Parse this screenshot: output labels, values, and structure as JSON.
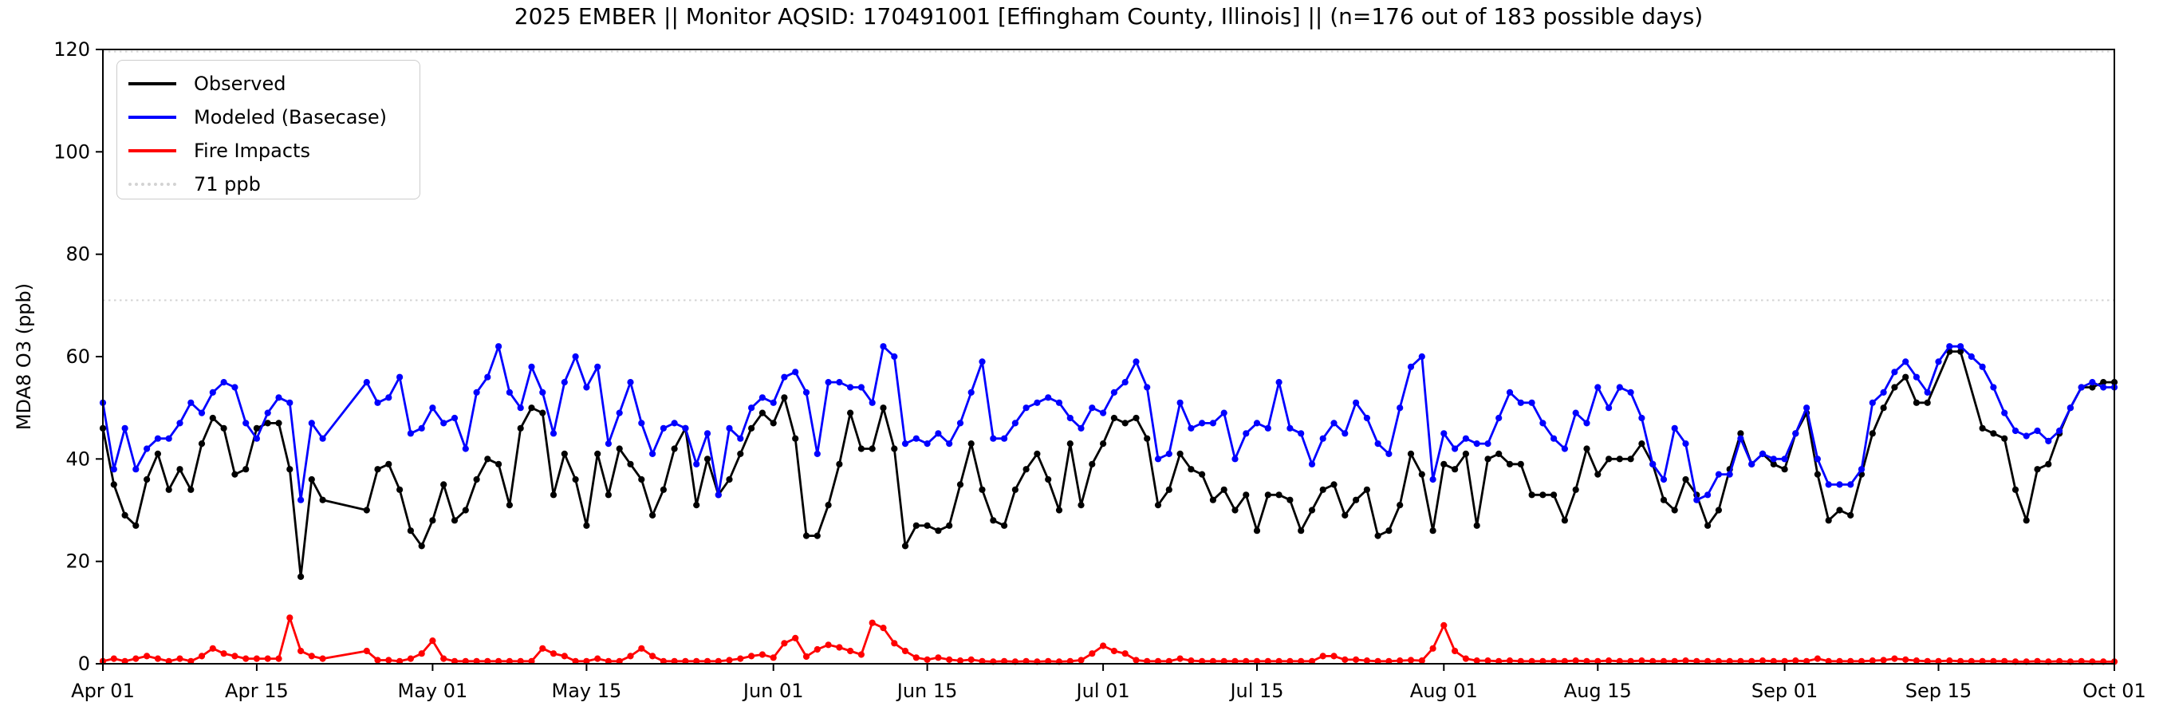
{
  "chart_data": {
    "type": "line",
    "title": "2025 EMBER || Monitor AQSID: 170491001 [Effingham County, Illinois] || (n=176 out of 183 possible days)",
    "ylabel": "MDA8 O3 (ppb)",
    "ylim": [
      0,
      120
    ],
    "yticks": [
      0,
      20,
      40,
      60,
      80,
      100,
      120
    ],
    "x_count": 184,
    "x_start_label": "Apr 01",
    "x_end_label": "Oct 01",
    "xticks": [
      {
        "label": "Apr 01",
        "index": 0
      },
      {
        "label": "Apr 15",
        "index": 14
      },
      {
        "label": "May 01",
        "index": 30
      },
      {
        "label": "May 15",
        "index": 44
      },
      {
        "label": "Jun 01",
        "index": 61
      },
      {
        "label": "Jun 15",
        "index": 75
      },
      {
        "label": "Jul 01",
        "index": 91
      },
      {
        "label": "Jul 15",
        "index": 105
      },
      {
        "label": "Aug 01",
        "index": 122
      },
      {
        "label": "Aug 15",
        "index": 136
      },
      {
        "label": "Sep 01",
        "index": 153
      },
      {
        "label": "Sep 15",
        "index": 167
      },
      {
        "label": "Oct 01",
        "index": 183
      }
    ],
    "legend_position": "upper left",
    "grid": false,
    "series": [
      {
        "name": "Observed",
        "color": "#000000",
        "style": "solid",
        "marker": "circle",
        "values": [
          46,
          35,
          29,
          27,
          36,
          41,
          34,
          38,
          34,
          43,
          48,
          46,
          37,
          38,
          46,
          47,
          47,
          38,
          17,
          36,
          32,
          null,
          null,
          null,
          30,
          38,
          39,
          34,
          26,
          23,
          28,
          35,
          28,
          30,
          36,
          40,
          39,
          31,
          46,
          50,
          49,
          33,
          41,
          36,
          27,
          41,
          33,
          42,
          39,
          36,
          29,
          34,
          42,
          46,
          31,
          40,
          33,
          36,
          41,
          46,
          49,
          47,
          52,
          44,
          25,
          25,
          31,
          39,
          49,
          42,
          42,
          50,
          42,
          23,
          27,
          27,
          26,
          27,
          35,
          43,
          34,
          28,
          27,
          34,
          38,
          41,
          36,
          30,
          43,
          31,
          39,
          43,
          48,
          47,
          48,
          44,
          31,
          34,
          41,
          38,
          37,
          32,
          34,
          30,
          33,
          26,
          33,
          33,
          32,
          26,
          30,
          34,
          35,
          29,
          32,
          34,
          25,
          26,
          31,
          41,
          37,
          26,
          39,
          38,
          41,
          27,
          40,
          41,
          39,
          39,
          33,
          33,
          33,
          28,
          34,
          42,
          37,
          40,
          40,
          40,
          43,
          39,
          32,
          30,
          36,
          33,
          27,
          30,
          38,
          45,
          39,
          41,
          39,
          38,
          45,
          49,
          37,
          28,
          30,
          29,
          37,
          45,
          50,
          54,
          56,
          51,
          51,
          null,
          61,
          61,
          null,
          46,
          45,
          44,
          34,
          28,
          38,
          39,
          45,
          50,
          54,
          54,
          55,
          55
        ]
      },
      {
        "name": "Modeled (Basecase)",
        "color": "#0000ff",
        "style": "solid",
        "marker": "circle",
        "values": [
          51,
          38,
          46,
          38,
          42,
          44,
          44,
          47,
          51,
          49,
          53,
          55,
          54,
          47,
          44,
          49,
          52,
          51,
          32,
          47,
          44,
          null,
          null,
          null,
          55,
          51,
          52,
          56,
          45,
          46,
          50,
          47,
          48,
          42,
          53,
          56,
          62,
          53,
          50,
          58,
          53,
          45,
          55,
          60,
          54,
          58,
          43,
          49,
          55,
          47,
          41,
          46,
          47,
          46,
          39,
          45,
          33,
          46,
          44,
          50,
          52,
          51,
          56,
          57,
          53,
          41,
          55,
          55,
          54,
          54,
          51,
          62,
          60,
          43,
          44,
          43,
          45,
          43,
          47,
          53,
          59,
          44,
          44,
          47,
          50,
          51,
          52,
          51,
          48,
          46,
          50,
          49,
          53,
          55,
          59,
          54,
          40,
          41,
          51,
          46,
          47,
          47,
          49,
          40,
          45,
          47,
          46,
          55,
          46,
          45,
          39,
          44,
          47,
          45,
          51,
          48,
          43,
          41,
          50,
          58,
          60,
          36,
          45,
          42,
          44,
          43,
          43,
          48,
          53,
          51,
          51,
          47,
          44,
          42,
          49,
          47,
          54,
          50,
          54,
          53,
          48,
          39,
          36,
          46,
          43,
          32,
          33,
          37,
          37,
          44,
          39,
          41,
          40,
          40,
          45,
          50,
          40,
          35,
          35,
          35,
          38,
          51,
          53,
          57,
          59,
          56,
          53,
          59,
          62,
          62,
          60,
          58,
          54,
          49,
          45.5,
          44.5,
          45.5,
          43.5,
          45.5,
          50,
          54,
          55,
          54,
          54
        ]
      },
      {
        "name": "Fire Impacts",
        "color": "#ff0000",
        "style": "solid",
        "marker": "circle",
        "values": [
          0.5,
          1,
          0.5,
          1,
          1.5,
          1,
          0.5,
          1,
          0.5,
          1.5,
          3,
          2,
          1.5,
          1,
          1,
          1,
          1,
          9,
          2.5,
          1.5,
          1,
          null,
          null,
          null,
          2.5,
          0.7,
          0.7,
          0.5,
          1,
          2,
          4.5,
          1,
          0.5,
          0.5,
          0.5,
          0.5,
          0.5,
          0.5,
          0.5,
          0.5,
          3,
          2,
          1.5,
          0.5,
          0.5,
          1,
          0.5,
          0.5,
          1.5,
          3,
          1.5,
          0.5,
          0.5,
          0.5,
          0.5,
          0.5,
          0.5,
          0.7,
          1,
          1.5,
          1.8,
          1.2,
          4,
          5,
          1.4,
          2.8,
          3.7,
          3.2,
          2.5,
          1.8,
          8,
          7,
          4,
          2.5,
          1.2,
          0.8,
          1.2,
          0.8,
          0.6,
          0.8,
          0.5,
          0.4,
          0.5,
          0.4,
          0.5,
          0.4,
          0.5,
          0.4,
          0.5,
          0.7,
          2,
          3.5,
          2.5,
          2,
          0.7,
          0.5,
          0.5,
          0.5,
          1,
          0.6,
          0.5,
          0.5,
          0.5,
          0.5,
          0.5,
          0.5,
          0.5,
          0.5,
          0.5,
          0.5,
          0.5,
          1.5,
          1.5,
          0.8,
          0.8,
          0.6,
          0.5,
          0.5,
          0.6,
          0.7,
          0.6,
          3,
          7.5,
          2.5,
          1,
          0.6,
          0.6,
          0.5,
          0.6,
          0.5,
          0.5,
          0.5,
          0.5,
          0.5,
          0.6,
          0.5,
          0.5,
          0.6,
          0.5,
          0.5,
          0.6,
          0.5,
          0.5,
          0.5,
          0.6,
          0.5,
          0.5,
          0.5,
          0.5,
          0.5,
          0.5,
          0.6,
          0.5,
          0.5,
          0.6,
          0.5,
          1,
          0.5,
          0.5,
          0.5,
          0.5,
          0.6,
          0.7,
          1,
          0.8,
          0.6,
          0.5,
          0.5,
          0.6,
          0.5,
          0.5,
          0.5,
          0.5,
          0.5,
          0.4,
          0.4,
          0.5,
          0.4,
          0.5,
          0.4,
          0.5,
          0.4,
          0.4,
          0.4
        ]
      }
    ],
    "reference_lines": [
      {
        "label": "71 ppb",
        "value": 71,
        "color": "#d3d3d3",
        "style": "dotted"
      },
      {
        "label": "",
        "value": 119.6,
        "color": "#d3d3d3",
        "style": "dotted"
      }
    ]
  }
}
